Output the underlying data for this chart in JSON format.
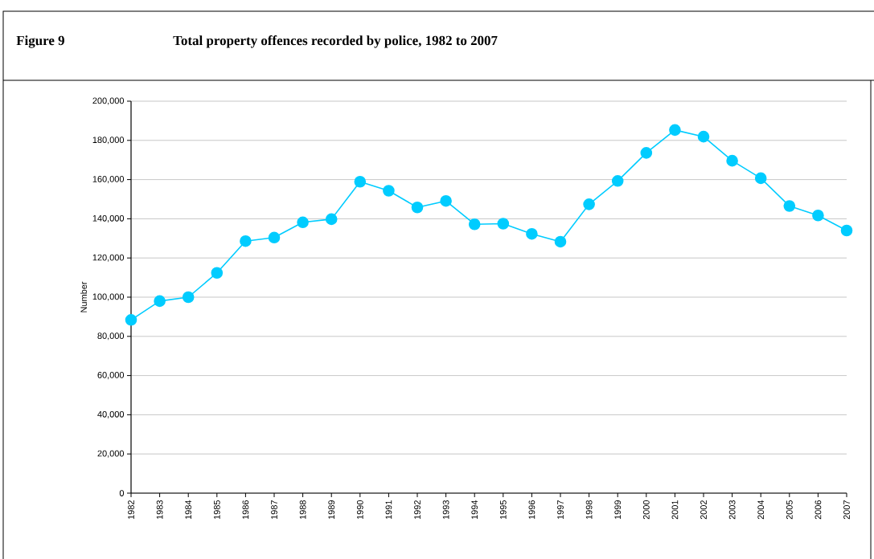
{
  "chart_data": {
    "type": "line",
    "title": "Figure 9",
    "subtitle": "Total property offences recorded by police, 1982 to 2007",
    "ylabel": "Number",
    "categories": [
      "1982",
      "1983",
      "1984",
      "1985",
      "1986",
      "1987",
      "1988",
      "1989",
      "1990",
      "1991",
      "1992",
      "1993",
      "1994",
      "1995",
      "1996",
      "1997",
      "1998",
      "1999",
      "2000",
      "2001",
      "2002",
      "2003",
      "2004",
      "2005",
      "2006",
      "2007"
    ],
    "series": [
      {
        "color": "#00ccff",
        "values": [
          88400,
          98000,
          100000,
          112400,
          128600,
          130400,
          138200,
          139800,
          158900,
          154300,
          145800,
          149100,
          137200,
          137500,
          132300,
          128300,
          147400,
          159300,
          173600,
          185300,
          181900,
          169600,
          160700,
          146500,
          141700,
          134000
        ]
      }
    ],
    "ylim": [
      0,
      200000
    ],
    "yticks": [
      {
        "value": 0,
        "label": "0"
      },
      {
        "value": 20000,
        "label": "20,000"
      },
      {
        "value": 40000,
        "label": "40,000"
      },
      {
        "value": 60000,
        "label": "60,000"
      },
      {
        "value": 80000,
        "label": "80,000"
      },
      {
        "value": 100000,
        "label": "100,000"
      },
      {
        "value": 120000,
        "label": "120,000"
      },
      {
        "value": 140000,
        "label": "140,000"
      },
      {
        "value": 160000,
        "label": "160,000"
      },
      {
        "value": 180000,
        "label": "180,000"
      },
      {
        "value": 200000,
        "label": "200,000"
      }
    ],
    "grid": "y",
    "marker": "circle",
    "line_style": "solid"
  }
}
